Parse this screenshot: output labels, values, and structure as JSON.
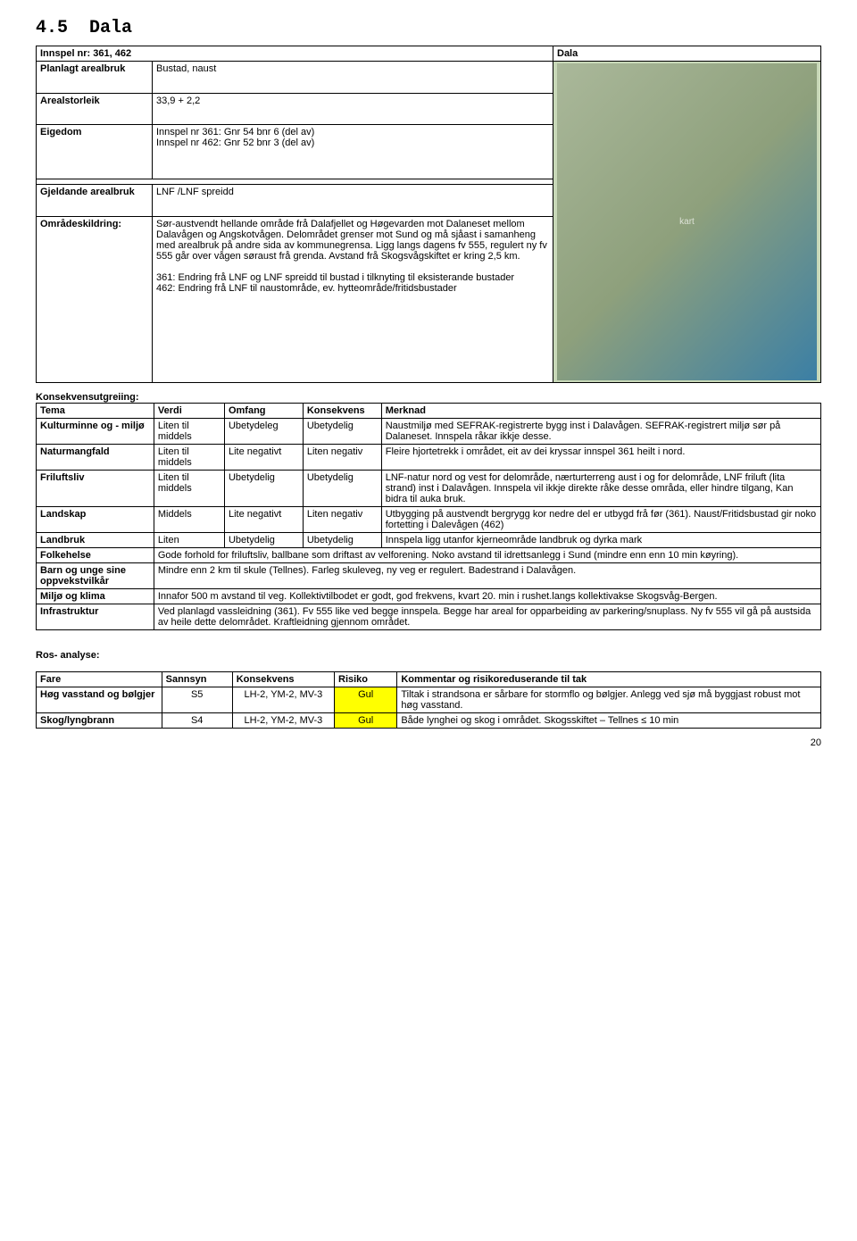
{
  "section": {
    "number": "4.5",
    "title": "Dala"
  },
  "main": {
    "innspel_label": "Innspel nr: 361, 462",
    "dala_label": "Dala",
    "rows": [
      {
        "label": "Planlagt arealbruk",
        "value": "Bustad, naust"
      },
      {
        "label": "Arealstorleik",
        "value": "33,9 + 2,2"
      },
      {
        "label": "Eigedom",
        "value": "Innspel nr 361: Gnr 54 bnr 6 (del av)\nInnspel nr 462: Gnr 52 bnr 3 (del av)"
      }
    ],
    "gjeldande_label": "Gjeldande arealbruk",
    "gjeldande_value": "LNF /LNF spreidd",
    "omrodes_label": "Områdeskildring:",
    "omrodes_value": "Sør-austvendt hellande område frå Dalafjellet og Høgevarden mot Dalaneset mellom Dalavågen og Angskotvågen. Delområdet grenser mot Sund og må sjåast i samanheng med arealbruk på andre sida av kommunegrensa. Ligg langs dagens fv 555, regulert ny fv 555 går over vågen søraust frå grenda. Avstand frå Skogsvågskiftet er kring 2,5 km.\n\n361: Endring frå LNF og LNF spreidd til bustad i tilknyting til eksisterande bustader\n462: Endring frå LNF til naustområde, ev. hytteområde/fritidsbustader"
  },
  "konsekvens": {
    "title": "Konsekvensutgreiing:",
    "headers": [
      "Tema",
      "Verdi",
      "Omfang",
      "Konsekvens",
      "Merknad"
    ],
    "rows": [
      {
        "c": [
          "Kulturminne og - miljø",
          "Liten til middels",
          "Ubetydeleg",
          "Ubetydelig",
          "Naustmiljø med SEFRAK-registrerte bygg inst i Dalavågen. SEFRAK-registrert miljø sør på Dalaneset. Innspela råkar ikkje desse."
        ]
      },
      {
        "c": [
          "Naturmangfald",
          "Liten til middels",
          "Lite negativt",
          "Liten negativ",
          "Fleire hjortetrekk i området, eit av dei kryssar innspel 361 heilt i nord."
        ]
      },
      {
        "c": [
          "Friluftsliv",
          "Liten til middels",
          "Ubetydelig",
          "Ubetydelig",
          "LNF-natur nord og vest  for delområde, nærturterreng aust i og for delområde, LNF friluft (lita strand) inst i Dalavågen. Innspela vil ikkje direkte råke desse områda, eller hindre tilgang, Kan bidra til auka bruk."
        ]
      },
      {
        "c": [
          "Landskap",
          "Middels",
          "Lite negativt",
          "Liten negativ",
          "Utbygging på austvendt bergrygg kor nedre del er utbygd frå før (361). Naust/Fritidsbustad gir noko fortetting i Dalevågen (462)"
        ]
      },
      {
        "c": [
          "Landbruk",
          "Liten",
          "Ubetydelig",
          "Ubetydelig",
          "Innspela ligg utanfor kjerneområde landbruk og dyrka mark"
        ]
      }
    ],
    "span_rows": [
      {
        "label": "Folkehelse",
        "value": "Gode forhold for friluftsliv, ballbane som driftast av velforening. Noko avstand til idrettsanlegg i Sund (mindre enn enn 10 min køyring)."
      },
      {
        "label": "Barn og unge sine oppvekstvilkår",
        "value": "Mindre enn 2 km til skule (Tellnes). Farleg skuleveg, ny veg er regulert. Badestrand i Dalavågen."
      },
      {
        "label": "Miljø og klima",
        "value": "Innafor 500 m avstand til veg. Kollektivtilbodet er godt, god frekvens, kvart 20. min i rushet.langs kollektivakse Skogsvåg-Bergen."
      },
      {
        "label": "Infrastruktur",
        "value": "Ved planlagd vassleidning (361). Fv 555 like ved begge innspela. Begge har areal for opparbeiding av parkering/snuplass. Ny fv 555 vil gå på austsida av heile dette delområdet. Kraftleidning gjennom området."
      }
    ]
  },
  "ros": {
    "title": "Ros- analyse:",
    "headers": [
      "Fare",
      "Sannsyn",
      "Konsekvens",
      "Risiko",
      "Kommentar og risikoreduserande til tak"
    ],
    "rows": [
      {
        "c": [
          "Høg vasstand og bølgjer",
          "S5",
          "LH-2, YM-2, MV-3",
          "Gul",
          "Tiltak i strandsona er sårbare for stormflo og bølgjer. Anlegg ved sjø må byggjast robust mot høg vasstand."
        ],
        "risk_color": "#ffff00"
      },
      {
        "c": [
          "Skog/lyngbrann",
          "S4",
          "LH-2, YM-2, MV-3",
          "Gul",
          "Både lynghei og skog i området. Skogsskiftet – Tellnes ≤ 10 min"
        ],
        "risk_color": "#ffff00"
      }
    ]
  },
  "page_number": "20"
}
